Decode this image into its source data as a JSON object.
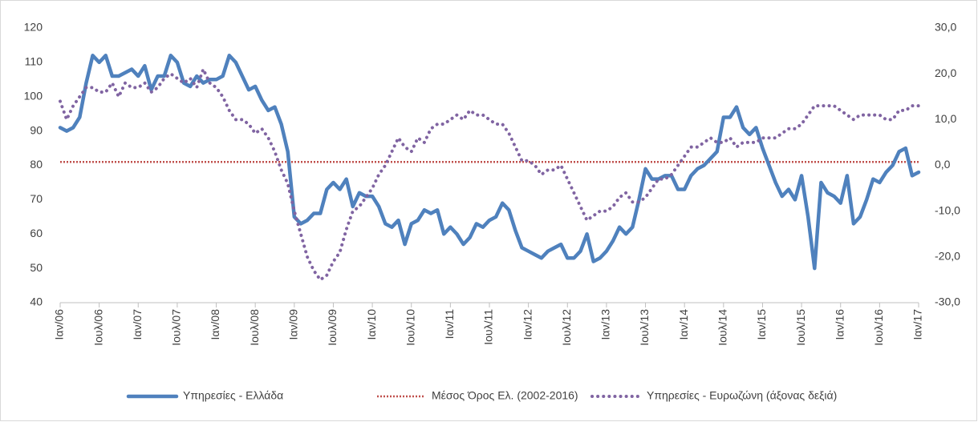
{
  "chart_data": {
    "type": "line",
    "categories": [
      "Ιαν/06",
      null,
      null,
      null,
      null,
      null,
      "Ιουλ/06",
      null,
      null,
      null,
      null,
      null,
      "Ιαν/07",
      null,
      null,
      null,
      null,
      null,
      "Ιουλ/07",
      null,
      null,
      null,
      null,
      null,
      "Ιαν/08",
      null,
      null,
      null,
      null,
      null,
      "Ιουλ/08",
      null,
      null,
      null,
      null,
      null,
      "Ιαν/09",
      null,
      null,
      null,
      null,
      null,
      "Ιουλ/09",
      null,
      null,
      null,
      null,
      null,
      "Ιαν/10",
      null,
      null,
      null,
      null,
      null,
      "Ιουλ/10",
      null,
      null,
      null,
      null,
      null,
      "Ιαν/11",
      null,
      null,
      null,
      null,
      null,
      "Ιουλ/11",
      null,
      null,
      null,
      null,
      null,
      "Ιαν/12",
      null,
      null,
      null,
      null,
      null,
      "Ιουλ/12",
      null,
      null,
      null,
      null,
      null,
      "Ιαν/13",
      null,
      null,
      null,
      null,
      null,
      "Ιουλ/13",
      null,
      null,
      null,
      null,
      null,
      "Ιαν/14",
      null,
      null,
      null,
      null,
      null,
      "Ιουλ/14",
      null,
      null,
      null,
      null,
      null,
      "Ιαν/15",
      null,
      null,
      null,
      null,
      null,
      "Ιουλ/15",
      null,
      null,
      null,
      null,
      null,
      "Ιαν/16",
      null,
      null,
      null,
      null,
      null,
      "Ιουλ/16",
      null,
      null,
      null,
      null,
      null,
      "Ιαν/17"
    ],
    "series": [
      {
        "name": "Υπηρεσίες  - Ελλάδα",
        "color": "#4f81bd",
        "style": "solid",
        "values": [
          91,
          90,
          91,
          94,
          104,
          112,
          110,
          112,
          106,
          106,
          107,
          108,
          106,
          109,
          102,
          106,
          106,
          112,
          110,
          104,
          103,
          106,
          104,
          105,
          105,
          106,
          112,
          110,
          106,
          102,
          103,
          99,
          96,
          97,
          92,
          84,
          65,
          63,
          64,
          66,
          66,
          73,
          75,
          73,
          76,
          68,
          72,
          71,
          71,
          68,
          63,
          62,
          64,
          57,
          63,
          64,
          67,
          66,
          67,
          60,
          62,
          60,
          57,
          59,
          63,
          62,
          64,
          65,
          69,
          67,
          61,
          56,
          55,
          54,
          53,
          55,
          56,
          57,
          53,
          53,
          55,
          60,
          52,
          53,
          55,
          58,
          62,
          60,
          62,
          70,
          79,
          76,
          76,
          77,
          77,
          73,
          73,
          77,
          79,
          80,
          82,
          84,
          94,
          94,
          97,
          91,
          89,
          91,
          85,
          80,
          75,
          71,
          73,
          70,
          77,
          65,
          50,
          75,
          72,
          71,
          69,
          77,
          63,
          65,
          70,
          76,
          75,
          78,
          80,
          84,
          85,
          77,
          78
        ]
      },
      {
        "name": "Υπηρεσίες - Ευρωζώνη (άξονας δεξιά)",
        "color": "#8064a2",
        "style": "dots",
        "axis": "y2",
        "values": [
          14,
          10,
          13,
          15,
          17,
          17,
          16,
          16,
          18,
          15,
          18,
          17,
          17,
          18,
          16,
          17,
          19,
          20,
          19,
          18,
          19,
          17,
          21,
          18,
          17,
          15,
          12,
          10,
          10,
          9,
          7,
          8,
          6,
          3,
          -1,
          -4,
          -10,
          -15,
          -20,
          -23,
          -25,
          -24,
          -21,
          -19,
          -14,
          -10,
          -9,
          -7,
          -5,
          -2,
          0,
          3,
          6,
          4,
          3,
          6,
          5,
          8,
          9,
          9,
          10,
          11,
          10,
          12,
          11,
          11,
          10,
          9,
          9,
          7,
          4,
          1,
          1,
          0,
          -2,
          -1,
          -1,
          0,
          -3,
          -6,
          -9,
          -12,
          -11,
          -10,
          -10,
          -9,
          -7,
          -6,
          -8,
          -8,
          -7,
          -5,
          -3,
          -3,
          -2,
          0,
          2,
          4,
          4,
          5,
          6,
          5,
          5,
          6,
          4,
          5,
          5,
          5,
          6,
          6,
          6,
          7,
          8,
          8,
          9,
          11,
          13,
          13,
          13,
          13,
          12,
          11,
          10,
          11,
          11,
          11,
          11,
          10,
          10,
          12,
          12,
          13,
          13
        ]
      }
    ],
    "hline": {
      "name": "Μέσος Όρος Ελ. (2002-2016)",
      "color": "#c0504d",
      "value": 81
    },
    "ylim": [
      40,
      120
    ],
    "yticks": [
      40,
      50,
      60,
      70,
      80,
      90,
      100,
      110,
      120
    ],
    "y2lim": [
      -30,
      30
    ],
    "y2ticks": [
      {
        "value": -30,
        "label": "-30,0"
      },
      {
        "value": -20,
        "label": "-20,0"
      },
      {
        "value": -10,
        "label": "-10,0"
      },
      {
        "value": 0,
        "label": "0,0"
      },
      {
        "value": 10,
        "label": "10,0"
      },
      {
        "value": 20,
        "label": "20,0"
      },
      {
        "value": 30,
        "label": "30,0"
      }
    ],
    "grid": false,
    "legend": "bottom"
  }
}
